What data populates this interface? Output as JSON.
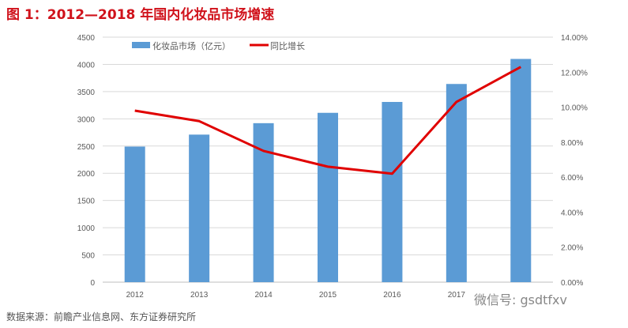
{
  "title": "图 1：2012—2018 年国内化妆品市场增速",
  "source": "数据来源：前瞻产业信息网、东方证券研究所",
  "watermark": "微信号: gsdtfxv",
  "chart_data": {
    "type": "bar+line",
    "categories": [
      "2012",
      "2013",
      "2014",
      "2015",
      "2016",
      "2017",
      "2018"
    ],
    "series": [
      {
        "name": "化妆品市场（亿元）",
        "type": "bar",
        "axis": "left",
        "color": "#5b9bd5",
        "values": [
          2490,
          2710,
          2920,
          3110,
          3310,
          3640,
          4100
        ]
      },
      {
        "name": "同比增长",
        "type": "line",
        "axis": "right",
        "color": "#e00000",
        "values": [
          9.8,
          9.2,
          7.5,
          6.6,
          6.2,
          10.3,
          12.3
        ]
      }
    ],
    "ylim_left": [
      0,
      4500
    ],
    "yticks_left": [
      "0",
      "500",
      "1000",
      "1500",
      "2000",
      "2500",
      "3000",
      "3500",
      "4000",
      "4500"
    ],
    "ylim_right": [
      0,
      14
    ],
    "yticks_right": [
      "0.00%",
      "2.00%",
      "4.00%",
      "6.00%",
      "8.00%",
      "10.00%",
      "12.00%",
      "14.00%"
    ],
    "grid": "horizontal",
    "legend": "top"
  }
}
